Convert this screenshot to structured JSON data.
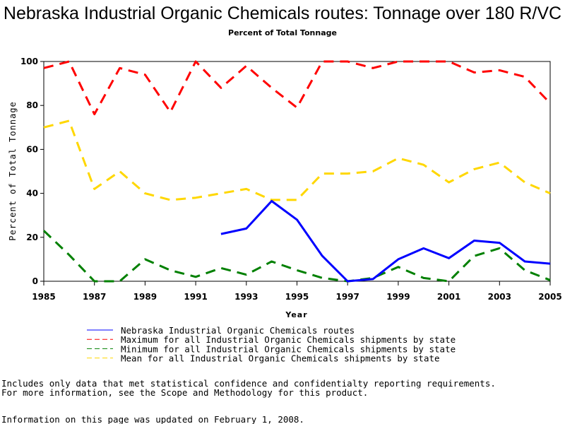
{
  "chart_data": {
    "type": "line",
    "title": "Nebraska Industrial Organic Chemicals routes: Tonnage over 180 R/VC",
    "subtitle": "Percent of Total Tonnage",
    "xlabel": "Year",
    "ylabel": "Percent of Total Tonnage",
    "xlim": [
      1985,
      2005
    ],
    "ylim": [
      0,
      100
    ],
    "x_ticks": [
      "1985",
      "1987",
      "1989",
      "1991",
      "1993",
      "1995",
      "1997",
      "1999",
      "2001",
      "2003",
      "2005"
    ],
    "y_ticks": [
      "0",
      "20",
      "40",
      "60",
      "80",
      "100"
    ],
    "x": [
      1985,
      1986,
      1987,
      1988,
      1989,
      1990,
      1991,
      1992,
      1993,
      1994,
      1995,
      1996,
      1997,
      1998,
      1999,
      2000,
      2001,
      2002,
      2003,
      2004,
      2005
    ],
    "series": [
      {
        "name": "Maximum for all Industrial Organic Chemicals shipments by state",
        "color": "#ff0000",
        "style": "dashed",
        "values": [
          97,
          100,
          76,
          97,
          94,
          77,
          100,
          88,
          98,
          88,
          79,
          100,
          100,
          97,
          100,
          100,
          100,
          95,
          96,
          93,
          81
        ]
      },
      {
        "name": "Mean for all Industrial Organic Chemicals shipments by state",
        "color": "#ffd700",
        "style": "dashed",
        "values": [
          70,
          73,
          42,
          50,
          40,
          37,
          38,
          40,
          42,
          37,
          37,
          49,
          49,
          50,
          56,
          53,
          45,
          51,
          54,
          45,
          40
        ]
      },
      {
        "name": "Minimum for all Industrial Organic Chemicals shipments by state",
        "color": "#008000",
        "style": "dashed",
        "values": [
          23,
          12,
          0,
          0,
          10,
          5,
          2,
          6,
          3,
          9,
          5,
          1.5,
          0,
          1.5,
          6.5,
          1.5,
          0,
          11.5,
          15,
          5,
          0.5
        ]
      },
      {
        "name": "Nebraska Industrial Organic Chemicals routes",
        "color": "#0000ff",
        "style": "solid",
        "values": [
          null,
          null,
          null,
          null,
          null,
          null,
          null,
          21.5,
          24,
          36.5,
          28,
          11.5,
          0,
          1,
          10,
          15,
          10.5,
          18.5,
          17.5,
          9,
          8
        ]
      }
    ],
    "legend": [
      {
        "label": "Nebraska Industrial Organic Chemicals routes",
        "color": "#0000ff",
        "style": "solid"
      },
      {
        "label": "Maximum for all Industrial Organic Chemicals shipments by state",
        "color": "#ff0000",
        "style": "dashed"
      },
      {
        "label": "Minimum for all Industrial Organic Chemicals shipments by state",
        "color": "#008000",
        "style": "dashed"
      },
      {
        "label": "Mean for all Industrial Organic Chemicals shipments by state",
        "color": "#ffd700",
        "style": "dashed"
      }
    ],
    "legend_position": "bottom",
    "grid": false
  },
  "footer": {
    "note_line1": "Includes only data that met statistical confidence and confidentialty reporting requirements.",
    "note_line2": "For more information, see the Scope and Methodology for this product.",
    "updated": "Information on this page was updated on February 1, 2008."
  }
}
